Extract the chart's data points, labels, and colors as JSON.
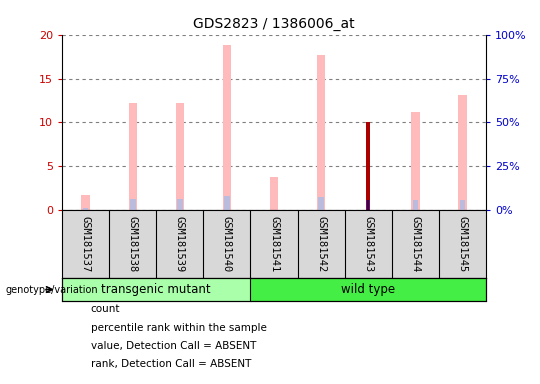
{
  "title": "GDS2823 / 1386006_at",
  "samples": [
    "GSM181537",
    "GSM181538",
    "GSM181539",
    "GSM181540",
    "GSM181541",
    "GSM181542",
    "GSM181543",
    "GSM181544",
    "GSM181545"
  ],
  "group_defs": [
    {
      "name": "transgenic mutant",
      "indices": [
        0,
        1,
        2,
        3
      ],
      "color": "#aaffaa"
    },
    {
      "name": "wild type",
      "indices": [
        4,
        5,
        6,
        7,
        8
      ],
      "color": "#44ee44"
    }
  ],
  "ylim_left": [
    0,
    20
  ],
  "ylim_right": [
    0,
    100
  ],
  "yticks_left": [
    0,
    5,
    10,
    15,
    20
  ],
  "yticks_right": [
    0,
    25,
    50,
    75,
    100
  ],
  "value_absent": [
    1.8,
    12.2,
    12.2,
    18.8,
    3.8,
    17.7,
    0.0,
    11.2,
    13.1
  ],
  "rank_absent": [
    1.2,
    6.5,
    6.5,
    8.1,
    0.0,
    7.4,
    0.0,
    6.2,
    6.2
  ],
  "count": [
    0.0,
    0.0,
    0.0,
    0.0,
    0.0,
    0.0,
    10.0,
    0.0,
    0.0
  ],
  "percentile_rank": [
    0.0,
    0.0,
    0.0,
    0.0,
    0.0,
    0.0,
    5.7,
    0.0,
    0.0
  ],
  "color_value_absent": "#ffbbbb",
  "color_rank_absent": "#bbbbdd",
  "color_count": "#aa0000",
  "color_percentile": "#0000aa",
  "legend_items": [
    {
      "label": "count",
      "color": "#aa0000"
    },
    {
      "label": "percentile rank within the sample",
      "color": "#0000aa"
    },
    {
      "label": "value, Detection Call = ABSENT",
      "color": "#ffbbbb"
    },
    {
      "label": "rank, Detection Call = ABSENT",
      "color": "#bbbbdd"
    }
  ],
  "left_yaxis_color": "#cc0000",
  "right_yaxis_color": "#0000cc",
  "grid_color": "#000000",
  "grid_alpha": 0.5,
  "bg_gray": "#d8d8d8"
}
